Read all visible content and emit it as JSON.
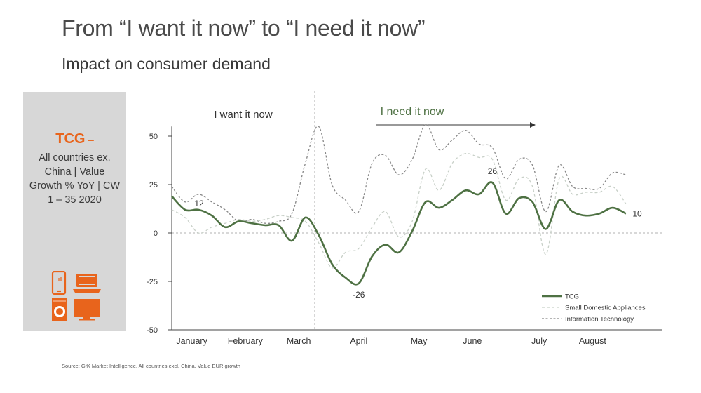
{
  "header": {
    "title": "From “I want it now” to “I need it now”",
    "subtitle": "Impact on consumer demand"
  },
  "sidebar": {
    "title": "TCG",
    "dash": "–",
    "subtitle": "All countries ex. China | Value Growth % YoY | CW 1 – 35 2020",
    "icons": [
      "smartphone-icon",
      "laptop-icon",
      "washing-machine-icon",
      "tv-icon"
    ],
    "background_color": "#d7d7d7",
    "accent_color": "#e8641c"
  },
  "chart_data": {
    "type": "line",
    "x": [
      1,
      2,
      3,
      4,
      5,
      6,
      7,
      8,
      9,
      10,
      11,
      12,
      13,
      14,
      15,
      16,
      17,
      18,
      19,
      20,
      21,
      22,
      23,
      24,
      25,
      26,
      27,
      28,
      29,
      30,
      31,
      32,
      33,
      34,
      35
    ],
    "x_unit": "calendar week 2020",
    "month_labels": [
      "January",
      "February",
      "March",
      "April",
      "May",
      "June",
      "July",
      "August"
    ],
    "ylim": [
      -50,
      55
    ],
    "yticks": [
      50,
      25,
      0,
      -25,
      -50
    ],
    "grid": false,
    "zero_line": true,
    "phase_divider_after_week": 11,
    "phases": [
      "I want it now",
      "I need it now"
    ],
    "series": [
      {
        "name": "TCG",
        "color": "#4e7143",
        "style": "solid",
        "values": [
          19,
          12,
          12,
          9,
          3,
          6,
          5,
          4,
          4,
          -4,
          8,
          -1,
          -16,
          -23,
          -26,
          -12,
          -6,
          -10,
          1,
          16,
          13,
          17,
          22,
          20,
          26,
          10,
          18,
          16,
          2,
          17,
          11,
          9,
          10,
          13,
          10
        ]
      },
      {
        "name": "Small Domestic Appliances",
        "color": "#c8d0c8",
        "style": "dashed",
        "values": [
          12,
          8,
          0,
          3,
          5,
          7,
          6,
          7,
          9,
          8,
          6,
          -5,
          -18,
          -10,
          -8,
          3,
          11,
          -2,
          6,
          33,
          22,
          36,
          41,
          39,
          38,
          17,
          28,
          24,
          -11,
          28,
          20,
          21,
          21,
          24,
          15
        ]
      },
      {
        "name": "Information Technology",
        "color": "#888888",
        "style": "dashed",
        "values": [
          24,
          16,
          20,
          16,
          12,
          6,
          7,
          5,
          6,
          10,
          36,
          55,
          25,
          17,
          11,
          36,
          40,
          30,
          38,
          56,
          43,
          48,
          53,
          46,
          44,
          28,
          38,
          35,
          11,
          35,
          24,
          23,
          23,
          31,
          30
        ]
      }
    ],
    "annotations": [
      {
        "label": "12",
        "week": 2,
        "value": 12
      },
      {
        "label": "-26",
        "week": 15,
        "value": -26
      },
      {
        "label": "26",
        "week": 25,
        "value": 26
      },
      {
        "label": "10",
        "week": 35,
        "value": 10
      }
    ],
    "legend_position": "bottom-right"
  },
  "source": "Source: GfK Market Intelligence, All countries excl. China, Value EUR growth"
}
